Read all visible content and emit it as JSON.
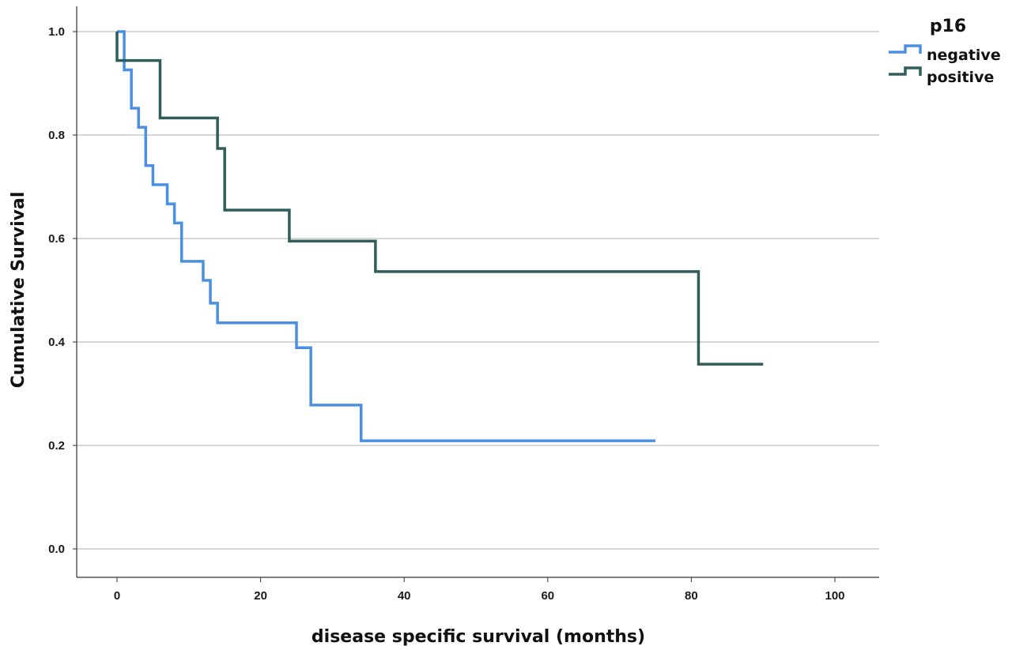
{
  "chart_data": {
    "type": "line",
    "subtype": "kaplan-meier step",
    "xlabel": "disease specific survival (months)",
    "ylabel": "Cumulative Survival",
    "xlim": [
      -5,
      103
    ],
    "ylim": [
      -0.05,
      1.05
    ],
    "x_ticks": [
      0,
      20,
      40,
      60,
      80,
      100
    ],
    "y_ticks": [
      0.0,
      0.2,
      0.4,
      0.6,
      0.8,
      1.0
    ],
    "x_tick_labels": [
      "0",
      "20",
      "40",
      "60",
      "80",
      "100"
    ],
    "y_tick_labels": [
      "0.0",
      "0.2",
      "0.4",
      "0.6",
      "0.8",
      "1.0"
    ],
    "grid": "horizontal",
    "legend": {
      "title": "p16",
      "position": "top-right",
      "entries": [
        "negative",
        "positive"
      ]
    },
    "series": [
      {
        "name": "negative",
        "color": "#4a90e2",
        "x": [
          0,
          1,
          2,
          3,
          4,
          5,
          7,
          8,
          9,
          12,
          13,
          14,
          25,
          27,
          34,
          75
        ],
        "values": [
          1.0,
          0.926,
          0.852,
          0.815,
          0.741,
          0.704,
          0.667,
          0.63,
          0.556,
          0.519,
          0.475,
          0.437,
          0.389,
          0.278,
          0.209,
          0.209
        ]
      },
      {
        "name": "positive",
        "color": "#2f5d5a",
        "x": [
          0,
          6,
          14,
          15,
          24,
          36,
          81,
          90
        ],
        "values": [
          0.944,
          0.833,
          0.774,
          0.655,
          0.595,
          0.536,
          0.357,
          0.357
        ]
      }
    ]
  }
}
